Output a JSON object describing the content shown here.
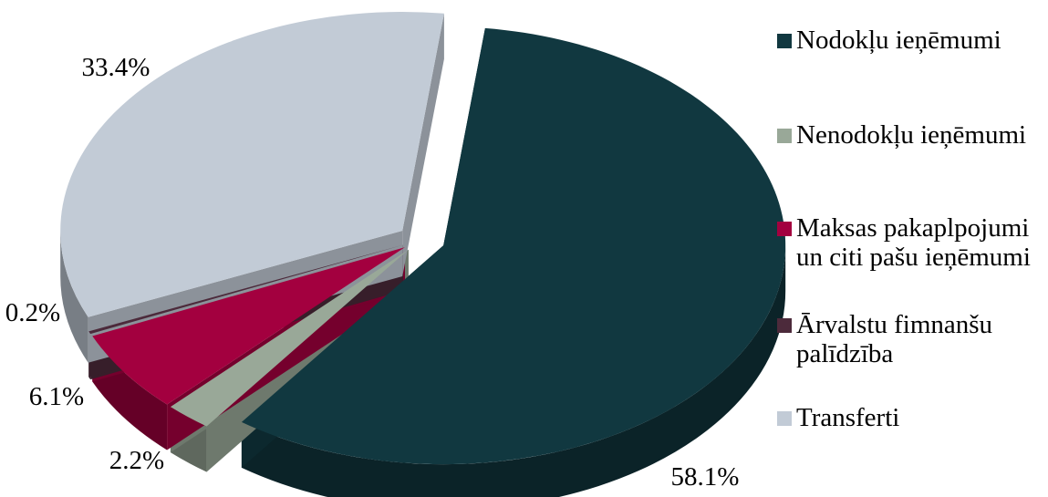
{
  "chart_data": {
    "type": "pie",
    "style": "3d-exploded",
    "series": [
      {
        "name": "Nodokļu ieņēmumi",
        "value": 58.1,
        "label": "58.1%",
        "color": "#113840"
      },
      {
        "name": "Nenodokļu ieņēmumi",
        "value": 2.2,
        "label": "2.2%",
        "color": "#99a898"
      },
      {
        "name": "Maksas pakaplpojumi un citi pašu ieņēmumi",
        "value": 6.1,
        "label": "6.1%",
        "color": "#a3003f"
      },
      {
        "name": "Ārvalstu fimnanšu palīdzība",
        "value": 0.2,
        "label": "0.2%",
        "color": "#4c2a3b"
      },
      {
        "name": "Transferti",
        "value": 33.4,
        "label": "33.4%",
        "color": "#c2cbd6"
      }
    ],
    "legend_position": "right"
  }
}
